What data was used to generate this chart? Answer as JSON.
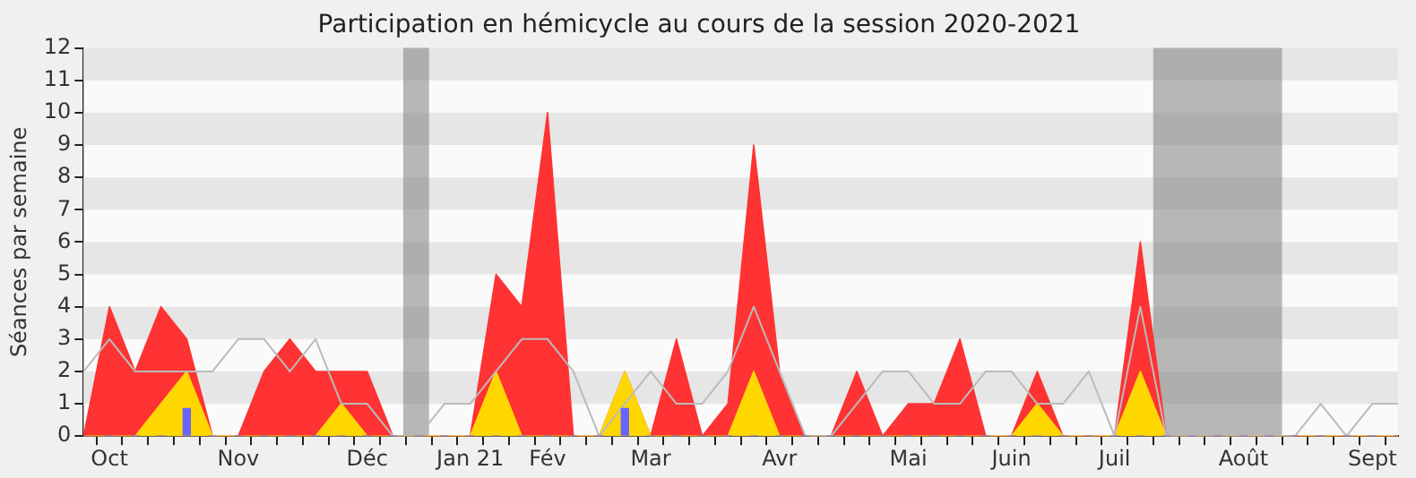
{
  "chart_data": {
    "type": "area",
    "title": "Participation en hémicycle au cours de la session 2020-2021",
    "ylabel": "Séances par semaine",
    "categories": [
      null,
      "Oct",
      null,
      null,
      null,
      null,
      "Nov",
      null,
      null,
      null,
      null,
      "Déc",
      null,
      null,
      null,
      "Jan 21",
      null,
      null,
      "Fév",
      null,
      null,
      null,
      "Mar",
      null,
      null,
      null,
      null,
      "Avr",
      null,
      null,
      null,
      null,
      "Mai",
      null,
      null,
      null,
      "Juin",
      null,
      null,
      null,
      "Juil",
      null,
      null,
      null,
      null,
      "Août",
      null,
      null,
      null,
      null,
      "Sept",
      null
    ],
    "series": [
      {
        "type": "line",
        "color": "#bbbbbb",
        "values": [
          2,
          3,
          2,
          2,
          2,
          2,
          3,
          3,
          2,
          3,
          1,
          1,
          0,
          0,
          1,
          1,
          2,
          3,
          3,
          2,
          0,
          1,
          2,
          1,
          1,
          2,
          4,
          2,
          0,
          0,
          1,
          2,
          2,
          1,
          1,
          2,
          2,
          1,
          1,
          2,
          0,
          4,
          0,
          0,
          0,
          0,
          0,
          0,
          1,
          0,
          1,
          1
        ]
      },
      {
        "color": "#ff3333",
        "values": [
          0,
          4,
          2,
          4,
          3,
          0,
          0,
          2,
          3,
          2,
          2,
          2,
          0,
          0,
          0,
          0,
          5,
          4,
          10,
          0,
          0,
          2,
          0,
          3,
          0,
          1,
          9,
          2,
          0,
          0,
          2,
          0,
          1,
          1,
          3,
          0,
          0,
          2,
          0,
          0,
          0,
          6,
          0,
          0,
          0,
          0,
          0,
          0,
          0,
          0,
          0,
          0
        ]
      },
      {
        "color": "#ffd700",
        "values": [
          0,
          0,
          0,
          1,
          2,
          0,
          0,
          0,
          0,
          0,
          1,
          0,
          0,
          0,
          0,
          0,
          2,
          0,
          0,
          0,
          0,
          2,
          0,
          0,
          0,
          0,
          2,
          0,
          0,
          0,
          0,
          0,
          0,
          0,
          0,
          0,
          0,
          1,
          0,
          0,
          0,
          2,
          0,
          0,
          0,
          0,
          0,
          0,
          0,
          0,
          0,
          0
        ]
      },
      {
        "type": "bar",
        "color": "#6666ff",
        "values": [
          0,
          0,
          0,
          0,
          0.85,
          0,
          0,
          0,
          0,
          0,
          0,
          0,
          0,
          0,
          0,
          0,
          0,
          0,
          0,
          0,
          0,
          0.85,
          0,
          0,
          0,
          0,
          0,
          0,
          0,
          0,
          0,
          0,
          0,
          0,
          0,
          0,
          0,
          0,
          0,
          0,
          0,
          0,
          0,
          0,
          0,
          0,
          0,
          0,
          0,
          0,
          0,
          0
        ]
      }
    ],
    "ylim": [
      0,
      12
    ],
    "yticks": [
      0,
      1,
      2,
      3,
      4,
      5,
      6,
      7,
      8,
      9,
      10,
      11,
      12
    ],
    "legend": false
  }
}
